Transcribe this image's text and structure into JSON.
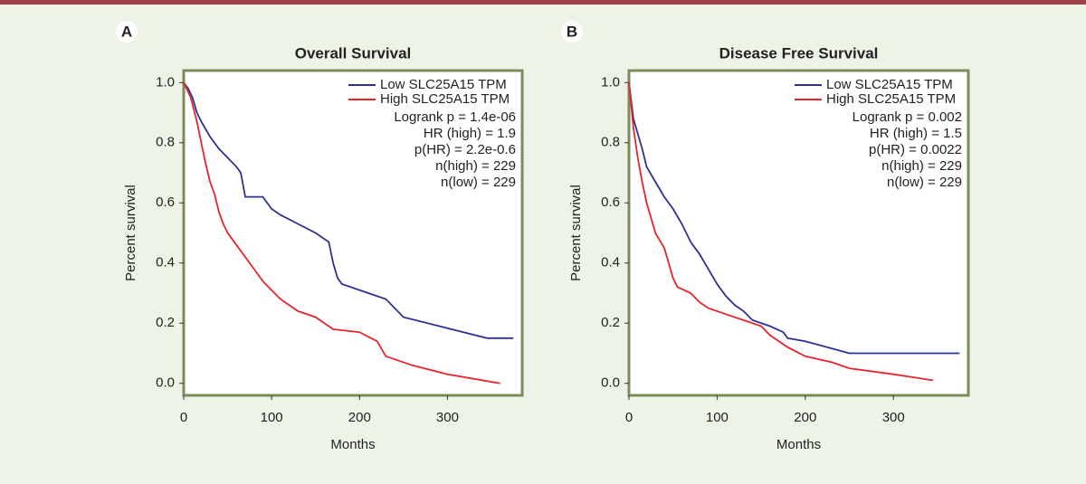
{
  "chart_data": [
    {
      "type": "line",
      "panel": "A",
      "title": "Overall Survival",
      "xlabel": "Months",
      "ylabel": "Percent survival",
      "xlim": [
        0,
        385
      ],
      "ylim": [
        -0.04,
        1.04
      ],
      "xticks": [
        0,
        100,
        200,
        300
      ],
      "yticks": [
        {
          "value": 1,
          "label": "1.0"
        },
        0.8,
        0.6,
        0.4,
        0.2,
        {
          "value": 0,
          "label": "0.0"
        }
      ],
      "annotations": [
        "Logrank p = 1.4e-06",
        "HR (high) = 1.9",
        "p(HR) = 2.2e-0.6",
        "n(high) = 229",
        "n(low) = 229"
      ],
      "series": [
        {
          "name": "Low SLC25A15 TPM",
          "color": "#2e3192",
          "x": [
            0,
            5,
            10,
            15,
            20,
            30,
            40,
            50,
            60,
            65,
            70,
            90,
            100,
            110,
            130,
            150,
            165,
            170,
            175,
            180,
            210,
            230,
            250,
            345,
            375
          ],
          "values": [
            1.0,
            0.98,
            0.95,
            0.9,
            0.87,
            0.82,
            0.78,
            0.75,
            0.72,
            0.7,
            0.62,
            0.62,
            0.58,
            0.56,
            0.53,
            0.5,
            0.47,
            0.4,
            0.35,
            0.33,
            0.3,
            0.28,
            0.22,
            0.15,
            0.15
          ]
        },
        {
          "name": "High SLC25A15 TPM",
          "color": "#e8242b",
          "x": [
            0,
            8,
            15,
            20,
            25,
            30,
            35,
            40,
            45,
            50,
            60,
            70,
            80,
            90,
            100,
            110,
            120,
            130,
            150,
            160,
            170,
            200,
            220,
            230,
            260,
            300,
            360
          ],
          "values": [
            1.0,
            0.95,
            0.87,
            0.8,
            0.73,
            0.67,
            0.63,
            0.57,
            0.53,
            0.5,
            0.46,
            0.42,
            0.38,
            0.34,
            0.31,
            0.28,
            0.26,
            0.24,
            0.22,
            0.2,
            0.18,
            0.17,
            0.14,
            0.09,
            0.06,
            0.03,
            0.0
          ]
        }
      ]
    },
    {
      "type": "line",
      "panel": "B",
      "title": "Disease Free Survival",
      "xlabel": "Months",
      "ylabel": "Percent survival",
      "xlim": [
        0,
        385
      ],
      "ylim": [
        -0.04,
        1.04
      ],
      "xticks": [
        0,
        100,
        200,
        300
      ],
      "yticks": [
        {
          "value": 1,
          "label": "1.0"
        },
        0.8,
        0.6,
        0.4,
        0.2,
        {
          "value": 0,
          "label": "0.0"
        }
      ],
      "annotations": [
        "Logrank p = 0.002",
        "HR (high) = 1.5",
        "p(HR) = 0.0022",
        "n(high) = 229",
        "n(low) = 229"
      ],
      "series": [
        {
          "name": "Low SLC25A15 TPM",
          "color": "#2e3192",
          "x": [
            0,
            5,
            10,
            15,
            20,
            30,
            40,
            50,
            60,
            70,
            80,
            90,
            100,
            110,
            120,
            130,
            140,
            160,
            175,
            180,
            200,
            250,
            375
          ],
          "values": [
            1.0,
            0.88,
            0.83,
            0.78,
            0.72,
            0.67,
            0.62,
            0.58,
            0.53,
            0.47,
            0.43,
            0.38,
            0.33,
            0.29,
            0.26,
            0.24,
            0.21,
            0.19,
            0.17,
            0.15,
            0.14,
            0.1,
            0.1
          ]
        },
        {
          "name": "High SLC25A15 TPM",
          "color": "#e8242b",
          "x": [
            0,
            5,
            10,
            15,
            20,
            25,
            30,
            40,
            50,
            55,
            70,
            80,
            90,
            110,
            130,
            150,
            160,
            170,
            180,
            200,
            230,
            250,
            300,
            345
          ],
          "values": [
            1.0,
            0.85,
            0.75,
            0.67,
            0.6,
            0.55,
            0.5,
            0.45,
            0.35,
            0.32,
            0.3,
            0.27,
            0.25,
            0.23,
            0.21,
            0.19,
            0.16,
            0.14,
            0.12,
            0.09,
            0.07,
            0.05,
            0.03,
            0.01
          ]
        }
      ]
    }
  ]
}
